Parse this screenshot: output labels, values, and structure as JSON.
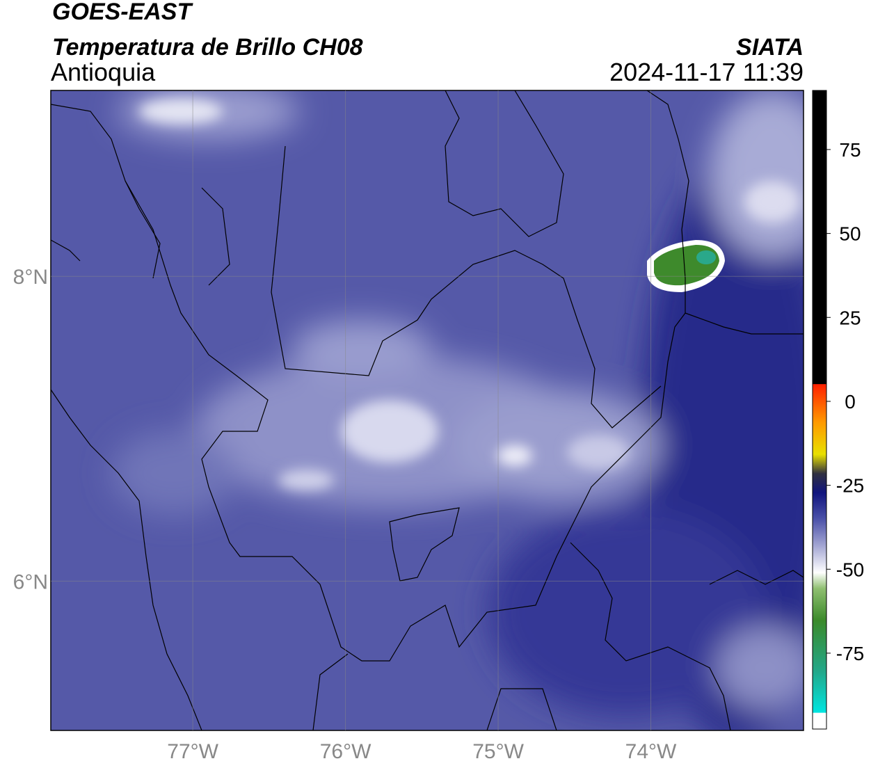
{
  "header": {
    "satellite": "GOES-EAST",
    "product": "Temperatura de Brillo CH08",
    "region": "Antioquia",
    "source": "SIATA",
    "datetime": "2024-11-17 11:39"
  },
  "map": {
    "xlim": [
      -77.93,
      -73.0
    ],
    "ylim": [
      5.02,
      9.22
    ],
    "xticks": [
      {
        "value": -77,
        "label": "77°W"
      },
      {
        "value": -76,
        "label": "76°W"
      },
      {
        "value": -75,
        "label": "75°W"
      },
      {
        "value": -74,
        "label": "74°W"
      }
    ],
    "yticks": [
      {
        "value": 6,
        "label": "6°N"
      },
      {
        "value": 8,
        "label": "8°N"
      }
    ],
    "grid": true
  },
  "colorbar": {
    "lim": [
      -97.6,
      92.6
    ],
    "ticks": [
      75,
      50,
      25,
      0,
      -25,
      -50,
      -75
    ]
  }
}
